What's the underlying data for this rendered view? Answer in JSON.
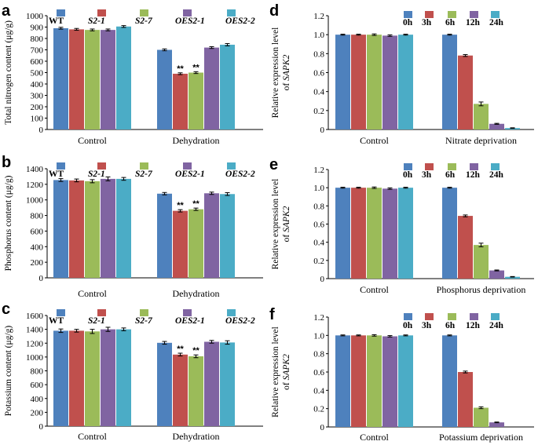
{
  "colors": {
    "series": [
      "#4e81bd",
      "#c0504d",
      "#9bbb59",
      "#8064a2",
      "#4bacc6"
    ]
  },
  "chart_data": [
    {
      "panel": "a",
      "type": "bar",
      "ylabel": "Total nitrogen content (μg/g)",
      "ylim": [
        0,
        1000
      ],
      "yticks": [
        0,
        100,
        200,
        300,
        400,
        500,
        600,
        700,
        800,
        900,
        1000
      ],
      "categories": [
        "Control",
        "Dehydration"
      ],
      "legend_style": "genotype",
      "series": [
        {
          "name": "WT",
          "values": [
            890,
            700
          ],
          "err": [
            8,
            8
          ],
          "sig": [
            "",
            ""
          ]
        },
        {
          "name": "S2-1",
          "values": [
            880,
            490
          ],
          "err": [
            8,
            8
          ],
          "sig": [
            "",
            "**"
          ]
        },
        {
          "name": "S2-7",
          "values": [
            875,
            500
          ],
          "err": [
            8,
            8
          ],
          "sig": [
            "",
            "**"
          ]
        },
        {
          "name": "OES2-1",
          "values": [
            875,
            720
          ],
          "err": [
            8,
            8
          ],
          "sig": [
            "",
            ""
          ]
        },
        {
          "name": "OES2-2",
          "values": [
            905,
            745
          ],
          "err": [
            8,
            10
          ],
          "sig": [
            "",
            ""
          ]
        }
      ]
    },
    {
      "panel": "b",
      "type": "bar",
      "ylabel": "Phosphorus content (μg/g)",
      "ylim": [
        0,
        1400
      ],
      "yticks": [
        0,
        200,
        400,
        600,
        800,
        1000,
        1200,
        1400
      ],
      "categories": [
        "Control",
        "Dehydration"
      ],
      "legend_style": "genotype",
      "series": [
        {
          "name": "WT",
          "values": [
            1255,
            1080
          ],
          "err": [
            18,
            15
          ],
          "sig": [
            "",
            ""
          ]
        },
        {
          "name": "S2-1",
          "values": [
            1250,
            860
          ],
          "err": [
            18,
            15
          ],
          "sig": [
            "",
            "**"
          ]
        },
        {
          "name": "S2-7",
          "values": [
            1240,
            880
          ],
          "err": [
            20,
            15
          ],
          "sig": [
            "",
            "**"
          ]
        },
        {
          "name": "OES2-1",
          "values": [
            1270,
            1085
          ],
          "err": [
            25,
            15
          ],
          "sig": [
            "",
            ""
          ]
        },
        {
          "name": "OES2-2",
          "values": [
            1270,
            1075
          ],
          "err": [
            18,
            18
          ],
          "sig": [
            "",
            ""
          ]
        }
      ]
    },
    {
      "panel": "c",
      "type": "bar",
      "ylabel": "Potassium content (μg/g)",
      "ylim": [
        0,
        1600
      ],
      "yticks": [
        0,
        200,
        400,
        600,
        800,
        1000,
        1200,
        1400,
        1600
      ],
      "categories": [
        "Control",
        "Dehydration"
      ],
      "legend_style": "genotype",
      "series": [
        {
          "name": "WT",
          "values": [
            1380,
            1205
          ],
          "err": [
            25,
            20
          ],
          "sig": [
            "",
            ""
          ]
        },
        {
          "name": "S2-1",
          "values": [
            1380,
            1035
          ],
          "err": [
            20,
            20
          ],
          "sig": [
            "",
            "**"
          ]
        },
        {
          "name": "S2-7",
          "values": [
            1370,
            1010
          ],
          "err": [
            30,
            20
          ],
          "sig": [
            "",
            "**"
          ]
        },
        {
          "name": "OES2-1",
          "values": [
            1400,
            1220
          ],
          "err": [
            30,
            20
          ],
          "sig": [
            "",
            ""
          ]
        },
        {
          "name": "OES2-2",
          "values": [
            1400,
            1210
          ],
          "err": [
            20,
            25
          ],
          "sig": [
            "",
            ""
          ]
        }
      ]
    },
    {
      "panel": "d",
      "type": "bar",
      "ylabel_line1": "Relative expression level",
      "ylabel_line2_prefix": "of ",
      "ylabel_line2_gene": "SAPK2",
      "ylim": [
        0,
        1.2
      ],
      "yticks": [
        0,
        0.2,
        0.4,
        0.6,
        0.8,
        1.0,
        1.2
      ],
      "ytick_labels": [
        "0",
        "0.2",
        "0.4",
        "0.6",
        "0.8",
        "1.0",
        "1.2"
      ],
      "categories": [
        "Control",
        "Nitrate deprivation"
      ],
      "legend_style": "time",
      "series": [
        {
          "name": "0h",
          "values": [
            1.0,
            1.0
          ],
          "err": [
            0.005,
            0.005
          ],
          "sig": [
            "",
            ""
          ]
        },
        {
          "name": "3h",
          "values": [
            1.0,
            0.78
          ],
          "err": [
            0.005,
            0.01
          ],
          "sig": [
            "",
            ""
          ]
        },
        {
          "name": "6h",
          "values": [
            1.0,
            0.27
          ],
          "err": [
            0.008,
            0.02
          ],
          "sig": [
            "",
            ""
          ]
        },
        {
          "name": "12h",
          "values": [
            0.99,
            0.06
          ],
          "err": [
            0.008,
            0.005
          ],
          "sig": [
            "",
            ""
          ]
        },
        {
          "name": "24h",
          "values": [
            1.0,
            0.015
          ],
          "err": [
            0.005,
            0.003
          ],
          "sig": [
            "",
            ""
          ]
        }
      ]
    },
    {
      "panel": "e",
      "type": "bar",
      "ylabel_line1": "Relative expression level",
      "ylabel_line2_prefix": "of ",
      "ylabel_line2_gene": "SAPK2",
      "ylim": [
        0,
        1.2
      ],
      "yticks": [
        0,
        0.2,
        0.4,
        0.6,
        0.8,
        1.0,
        1.2
      ],
      "ytick_labels": [
        "0",
        "0.2",
        "0.4",
        "0.6",
        "0.8",
        "1.0",
        "1.2"
      ],
      "categories": [
        "Control",
        "Phosphorus deprivation"
      ],
      "legend_style": "time",
      "series": [
        {
          "name": "0h",
          "values": [
            1.0,
            1.0
          ],
          "err": [
            0.005,
            0.005
          ],
          "sig": [
            "",
            ""
          ]
        },
        {
          "name": "3h",
          "values": [
            1.0,
            0.69
          ],
          "err": [
            0.005,
            0.01
          ],
          "sig": [
            "",
            ""
          ]
        },
        {
          "name": "6h",
          "values": [
            1.0,
            0.37
          ],
          "err": [
            0.008,
            0.02
          ],
          "sig": [
            "",
            ""
          ]
        },
        {
          "name": "12h",
          "values": [
            0.99,
            0.09
          ],
          "err": [
            0.008,
            0.005
          ],
          "sig": [
            "",
            ""
          ]
        },
        {
          "name": "24h",
          "values": [
            1.0,
            0.02
          ],
          "err": [
            0.005,
            0.003
          ],
          "sig": [
            "",
            ""
          ]
        }
      ]
    },
    {
      "panel": "f",
      "type": "bar",
      "ylabel_line1": "Relative expression level",
      "ylabel_line2_prefix": "of ",
      "ylabel_line2_gene": "SAPK2",
      "ylim": [
        0,
        1.2
      ],
      "yticks": [
        0,
        0.2,
        0.4,
        0.6,
        0.8,
        1.0,
        1.2
      ],
      "ytick_labels": [
        "0",
        "0.2",
        "0.4",
        "0.6",
        "0.8",
        "1.0",
        "1.2"
      ],
      "categories": [
        "Control",
        "Potassium deprivation"
      ],
      "legend_style": "time",
      "series": [
        {
          "name": "0h",
          "values": [
            1.0,
            1.0
          ],
          "err": [
            0.005,
            0.005
          ],
          "sig": [
            "",
            ""
          ]
        },
        {
          "name": "3h",
          "values": [
            1.0,
            0.6
          ],
          "err": [
            0.005,
            0.01
          ],
          "sig": [
            "",
            ""
          ]
        },
        {
          "name": "6h",
          "values": [
            1.0,
            0.21
          ],
          "err": [
            0.008,
            0.01
          ],
          "sig": [
            "",
            ""
          ]
        },
        {
          "name": "12h",
          "values": [
            0.99,
            0.05
          ],
          "err": [
            0.008,
            0.004
          ],
          "sig": [
            "",
            ""
          ]
        },
        {
          "name": "24h",
          "values": [
            1.0,
            0.0
          ],
          "err": [
            0.005,
            0.0
          ],
          "sig": [
            "",
            ""
          ]
        }
      ]
    }
  ]
}
